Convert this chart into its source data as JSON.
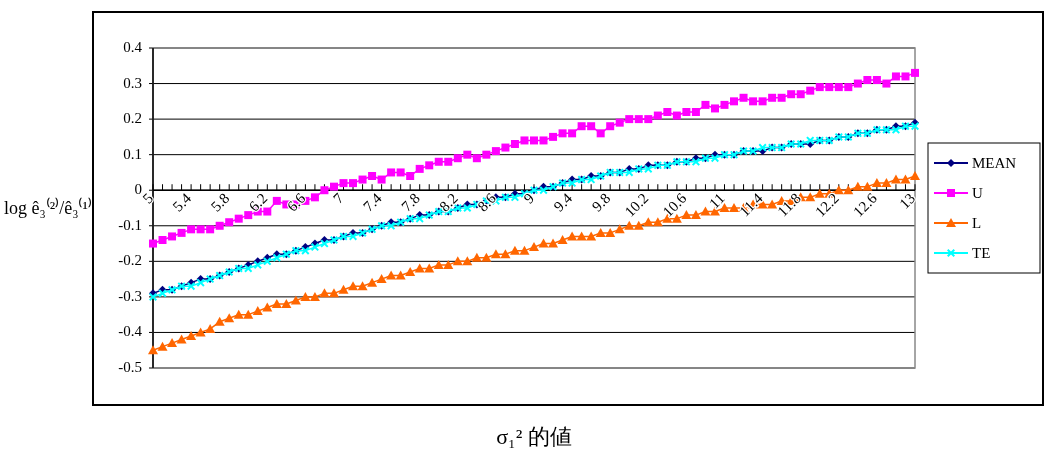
{
  "chart_data": {
    "type": "line",
    "xlabel": "σ₁² 的値",
    "ylabel": "log ê₃⁽²⁾/ê₃⁽¹⁾",
    "categories": [
      "5",
      null,
      null,
      null,
      "5.4",
      null,
      null,
      null,
      "5.8",
      null,
      null,
      null,
      "6.2",
      null,
      null,
      null,
      "6.6",
      null,
      null,
      null,
      "7",
      null,
      null,
      null,
      "7.4",
      null,
      null,
      null,
      "7.8",
      null,
      null,
      null,
      "8.2",
      null,
      null,
      null,
      "8.6",
      null,
      null,
      null,
      "9",
      null,
      null,
      null,
      "9.4",
      null,
      null,
      null,
      "9.8",
      null,
      null,
      null,
      "10.2",
      null,
      null,
      null,
      "10.6",
      null,
      null,
      null,
      "11",
      null,
      null,
      null,
      "11.4",
      null,
      null,
      null,
      "11.8",
      null,
      null,
      null,
      "12.2",
      null,
      null,
      null,
      "12.6",
      null,
      null,
      null,
      "13"
    ],
    "ylim": [
      -0.5,
      0.4
    ],
    "yticks": [
      -0.5,
      -0.4,
      -0.3,
      -0.2,
      -0.1,
      0,
      0.1,
      0.2,
      0.3,
      0.4
    ],
    "grid": "y",
    "legend": "right",
    "series": [
      {
        "name": "MEAN",
        "color": "#000080",
        "marker": "diamond",
        "values": [
          -0.29,
          -0.28,
          -0.28,
          -0.27,
          -0.26,
          -0.25,
          -0.25,
          -0.24,
          -0.23,
          -0.22,
          -0.21,
          -0.2,
          -0.19,
          -0.18,
          -0.18,
          -0.17,
          -0.16,
          -0.15,
          -0.14,
          -0.14,
          -0.13,
          -0.12,
          -0.12,
          -0.11,
          -0.1,
          -0.09,
          -0.09,
          -0.08,
          -0.07,
          -0.07,
          -0.06,
          -0.06,
          -0.05,
          -0.04,
          -0.04,
          -0.03,
          -0.02,
          -0.02,
          -0.01,
          -0.01,
          0.0,
          0.01,
          0.01,
          0.02,
          0.03,
          0.03,
          0.04,
          0.04,
          0.05,
          0.05,
          0.06,
          0.06,
          0.07,
          0.07,
          0.07,
          0.08,
          0.08,
          0.09,
          0.09,
          0.1,
          0.1,
          0.1,
          0.11,
          0.11,
          0.11,
          0.12,
          0.12,
          0.13,
          0.13,
          0.13,
          0.14,
          0.14,
          0.15,
          0.15,
          0.16,
          0.16,
          0.17,
          0.17,
          0.18,
          0.18,
          0.19
        ]
      },
      {
        "name": "U",
        "color": "#ff00ff",
        "marker": "square",
        "values": [
          -0.15,
          -0.14,
          -0.13,
          -0.12,
          -0.11,
          -0.11,
          -0.11,
          -0.1,
          -0.09,
          -0.08,
          -0.07,
          -0.06,
          -0.06,
          -0.03,
          -0.04,
          -0.04,
          -0.03,
          -0.02,
          0.0,
          0.01,
          0.02,
          0.02,
          0.03,
          0.04,
          0.03,
          0.05,
          0.05,
          0.04,
          0.06,
          0.07,
          0.08,
          0.08,
          0.09,
          0.1,
          0.09,
          0.1,
          0.11,
          0.12,
          0.13,
          0.14,
          0.14,
          0.14,
          0.15,
          0.16,
          0.16,
          0.18,
          0.18,
          0.16,
          0.18,
          0.19,
          0.2,
          0.2,
          0.2,
          0.21,
          0.22,
          0.21,
          0.22,
          0.22,
          0.24,
          0.23,
          0.24,
          0.25,
          0.26,
          0.25,
          0.25,
          0.26,
          0.26,
          0.27,
          0.27,
          0.28,
          0.29,
          0.29,
          0.29,
          0.29,
          0.3,
          0.31,
          0.31,
          0.3,
          0.32,
          0.32,
          0.33
        ]
      },
      {
        "name": "L",
        "color": "#ff6600",
        "marker": "triangle",
        "values": [
          -0.45,
          -0.44,
          -0.43,
          -0.42,
          -0.41,
          -0.4,
          -0.39,
          -0.37,
          -0.36,
          -0.35,
          -0.35,
          -0.34,
          -0.33,
          -0.32,
          -0.32,
          -0.31,
          -0.3,
          -0.3,
          -0.29,
          -0.29,
          -0.28,
          -0.27,
          -0.27,
          -0.26,
          -0.25,
          -0.24,
          -0.24,
          -0.23,
          -0.22,
          -0.22,
          -0.21,
          -0.21,
          -0.2,
          -0.2,
          -0.19,
          -0.19,
          -0.18,
          -0.18,
          -0.17,
          -0.17,
          -0.16,
          -0.15,
          -0.15,
          -0.14,
          -0.13,
          -0.13,
          -0.13,
          -0.12,
          -0.12,
          -0.11,
          -0.1,
          -0.1,
          -0.09,
          -0.09,
          -0.08,
          -0.08,
          -0.07,
          -0.07,
          -0.06,
          -0.06,
          -0.05,
          -0.05,
          -0.05,
          -0.04,
          -0.04,
          -0.04,
          -0.03,
          -0.03,
          -0.02,
          -0.02,
          -0.01,
          -0.01,
          0.0,
          0.0,
          0.01,
          0.01,
          0.02,
          0.02,
          0.03,
          0.03,
          0.04
        ]
      },
      {
        "name": "TE",
        "color": "#00ffff",
        "marker": "cross",
        "values": [
          -0.3,
          -0.29,
          -0.28,
          -0.27,
          -0.27,
          -0.26,
          -0.25,
          -0.24,
          -0.23,
          -0.22,
          -0.22,
          -0.21,
          -0.2,
          -0.19,
          -0.18,
          -0.17,
          -0.17,
          -0.16,
          -0.15,
          -0.14,
          -0.13,
          -0.13,
          -0.12,
          -0.11,
          -0.1,
          -0.1,
          -0.09,
          -0.08,
          -0.08,
          -0.07,
          -0.06,
          -0.06,
          -0.05,
          -0.05,
          -0.04,
          -0.03,
          -0.03,
          -0.02,
          -0.02,
          -0.01,
          0.0,
          0.0,
          0.01,
          0.02,
          0.02,
          0.03,
          0.03,
          0.04,
          0.05,
          0.05,
          0.05,
          0.06,
          0.06,
          0.07,
          0.07,
          0.08,
          0.08,
          0.08,
          0.09,
          0.09,
          0.1,
          0.1,
          0.11,
          0.11,
          0.12,
          0.12,
          0.12,
          0.13,
          0.13,
          0.14,
          0.14,
          0.14,
          0.15,
          0.15,
          0.16,
          0.16,
          0.17,
          0.17,
          0.17,
          0.18,
          0.18
        ]
      }
    ]
  }
}
